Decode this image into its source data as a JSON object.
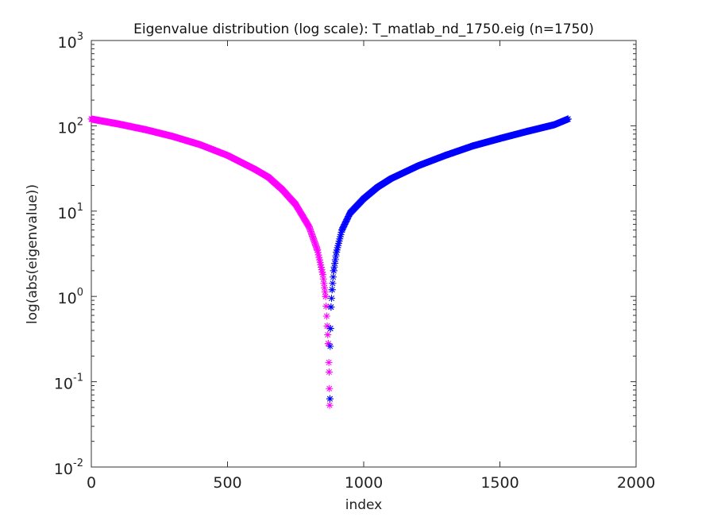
{
  "chart_data": {
    "type": "scatter",
    "title": "Eigenvalue distribution (log scale): T_matlab_nd_1750.eig (n=1750)",
    "xlabel": "index",
    "ylabel": "log(abs(eigenvalue))",
    "xlim": [
      0,
      2000
    ],
    "ylim": [
      0.01,
      1000
    ],
    "yscale": "log",
    "grid": false,
    "legend": "none",
    "marker": "asterisk",
    "x_ticks": [
      "0",
      "500",
      "1000",
      "1500",
      "2000"
    ],
    "y_ticks": [
      {
        "base": "10",
        "exp": "-2",
        "value": 0.01
      },
      {
        "base": "10",
        "exp": "-1",
        "value": 0.1
      },
      {
        "base": "10",
        "exp": "0",
        "value": 1
      },
      {
        "base": "10",
        "exp": "1",
        "value": 10
      },
      {
        "base": "10",
        "exp": "2",
        "value": 100
      },
      {
        "base": "10",
        "exp": "3",
        "value": 1000
      }
    ],
    "n": 1750,
    "series": [
      {
        "color": "#ff00ff",
        "description_of_values": "negative eigenvalues, absolute value",
        "x": [
          0,
          100,
          200,
          300,
          400,
          500,
          600,
          650,
          700,
          750,
          800,
          830,
          850,
          860,
          866,
          870,
          873,
          875
        ],
        "y": [
          120,
          105,
          90,
          75,
          60,
          45,
          31,
          25,
          18,
          12,
          6.5,
          3.5,
          1.8,
          1.0,
          0.45,
          0.28,
          0.13,
          0.053
        ]
      },
      {
        "color": "#0000ff",
        "description_of_values": "positive eigenvalues",
        "x": [
          876,
          877,
          878,
          880,
          884,
          890,
          900,
          920,
          950,
          1000,
          1050,
          1100,
          1200,
          1300,
          1400,
          1500,
          1600,
          1700,
          1750
        ],
        "y": [
          0.063,
          0.26,
          0.42,
          0.75,
          1.2,
          2.0,
          3.3,
          6.0,
          9.5,
          14,
          19,
          24,
          34,
          45,
          58,
          71,
          86,
          103,
          120
        ]
      }
    ]
  }
}
